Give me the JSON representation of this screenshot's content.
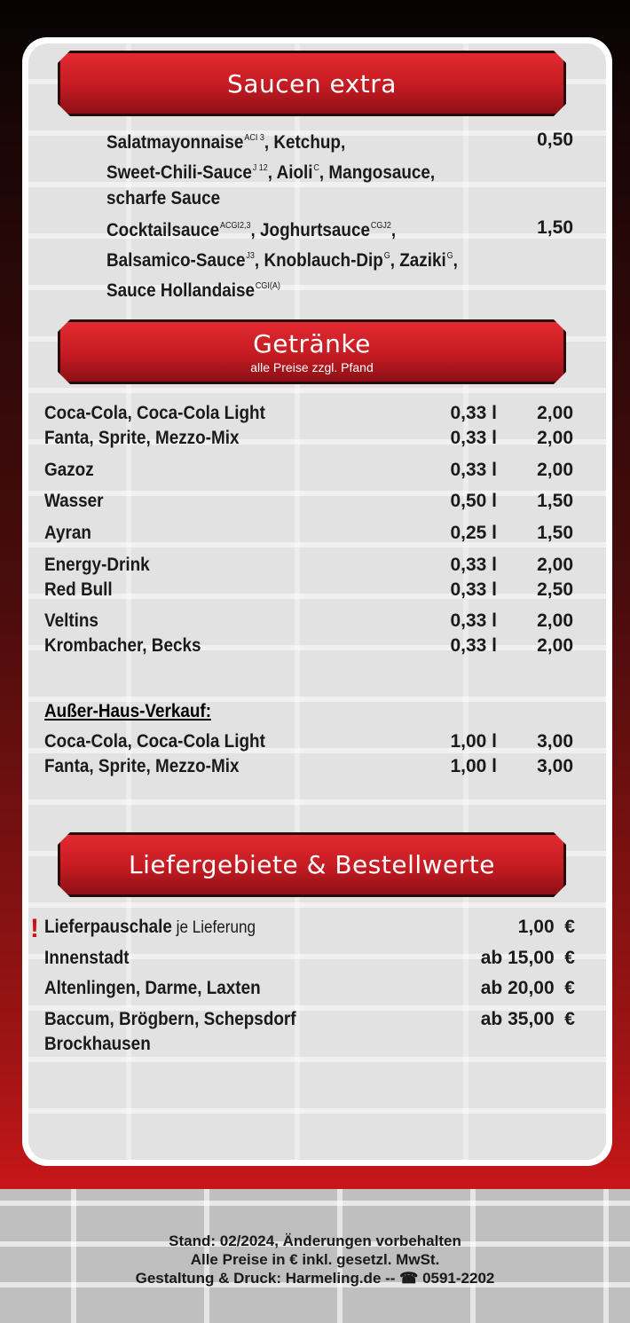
{
  "sauces": {
    "title": "Saucen extra",
    "groups": [
      {
        "price": "0,50",
        "lines": [
          [
            {
              "t": "Salatmayonnaise",
              "s": "ACI 3"
            },
            {
              "t": ", Ketchup,",
              "s": ""
            }
          ],
          [
            {
              "t": "Sweet-Chili-Sauce",
              "s": "J 12"
            },
            {
              "t": ", Aioli",
              "s": "C"
            },
            {
              "t": ",  Mangosauce,",
              "s": ""
            }
          ],
          [
            {
              "t": "scharfe Sauce",
              "s": ""
            }
          ]
        ]
      },
      {
        "price": "1,50",
        "lines": [
          [
            {
              "t": "Cocktailsauce",
              "s": "ACGI2,3"
            },
            {
              "t": ", Joghurtsauce",
              "s": "CGJ2"
            },
            {
              "t": ",",
              "s": ""
            }
          ],
          [
            {
              "t": "Balsamico-Sauce",
              "s": "J3"
            },
            {
              "t": ", Knoblauch-Dip",
              "s": "G"
            },
            {
              "t": ", Zaziki",
              "s": "G"
            },
            {
              "t": ",",
              "s": ""
            }
          ],
          [
            {
              "t": "Sauce Hollandaise",
              "s": "CGI(A)"
            }
          ]
        ]
      }
    ]
  },
  "drinks": {
    "title": "Getränke",
    "subtitle": "alle Preise zzgl. Pfand",
    "items": [
      {
        "name": "Coca-Cola, Coca-Cola Light",
        "vol": "0,33 l",
        "price": "2,00"
      },
      {
        "name": "Fanta, Sprite, Mezzo-Mix",
        "vol": "0,33 l",
        "price": "2,00"
      },
      {
        "name": "Gazoz",
        "vol": "0,33 l",
        "price": "2,00"
      },
      {
        "name": "Wasser",
        "vol": "0,50 l",
        "price": "1,50"
      },
      {
        "name": "Ayran",
        "vol": "0,25 l",
        "price": "1,50"
      },
      {
        "name": "Energy-Drink",
        "vol": "0,33 l",
        "price": "2,00"
      },
      {
        "name": "Red Bull",
        "vol": "0,33 l",
        "price": "2,50"
      },
      {
        "name": "Veltins",
        "vol": "0,33 l",
        "price": "2,00"
      },
      {
        "name": "Krombacher, Becks",
        "vol": "0,33 l",
        "price": "2,00"
      }
    ],
    "takeaway_heading": "Außer-Haus-Verkauf:",
    "takeaway": [
      {
        "name": "Coca-Cola, Coca-Cola Light",
        "vol": "1,00 l",
        "price": "3,00"
      },
      {
        "name": "Fanta, Sprite, Mezzo-Mix",
        "vol": "1,00 l",
        "price": "3,00"
      }
    ]
  },
  "delivery": {
    "title": "Liefergebiete & Bestellwerte",
    "alert": "!",
    "items": [
      {
        "name": "Lieferpauschale",
        "note": " je Lieferung",
        "price": "1,00  €"
      },
      {
        "name": "Innenstadt",
        "note": "",
        "price": "ab 15,00  €"
      },
      {
        "name": "Altenlingen, Darme, Laxten",
        "note": "",
        "price": "ab 20,00  €"
      },
      {
        "name": "Baccum, Brögbern, Schepsdorf",
        "note": "",
        "price": "ab 35,00  €"
      },
      {
        "name": "Brockhausen",
        "note": "",
        "price": ""
      }
    ]
  },
  "footer": {
    "lines": [
      "Stand: 02/2024, Änderungen vorbehalten",
      "Alle Preise in € inkl. gesetzl. MwSt.",
      "Gestaltung & Druck: Harmeling.de -- ☎ 0591-2202"
    ]
  },
  "colors": {
    "accent": "#c41b22",
    "alert": "#d01010"
  }
}
